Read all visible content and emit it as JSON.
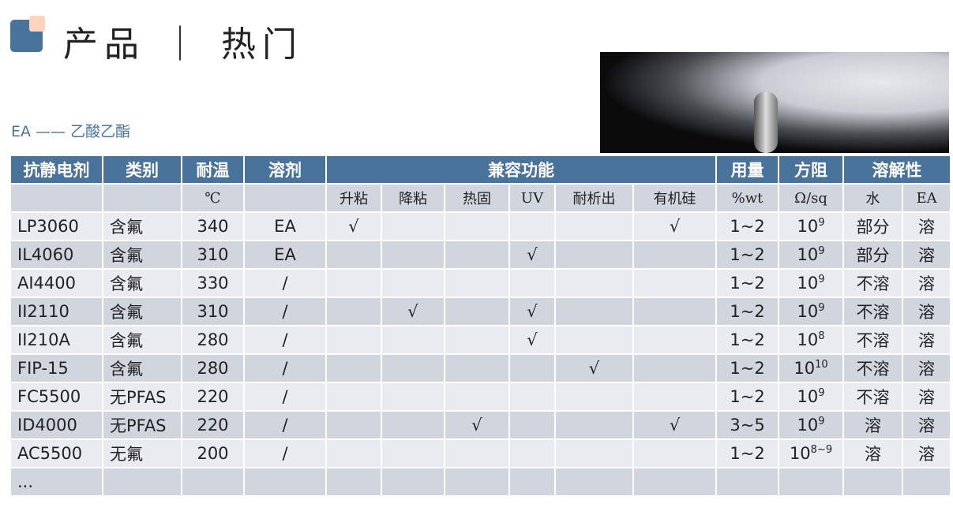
{
  "header": {
    "title": "产品 ｜ 热门",
    "subtitle": "EA —— 乙酸乙酯"
  },
  "colors": {
    "accent": "#4a739c",
    "accent2": "#fcd3bd",
    "row_light": "#e9ebf0",
    "row_dark": "#d0d5de"
  },
  "table": {
    "headers": [
      "抗静电剂",
      "类别",
      "耐温",
      "溶剂",
      "兼容功能",
      "用量",
      "方阻",
      "溶解性"
    ],
    "subheaders": [
      "",
      "",
      "℃",
      "",
      "升粘",
      "降粘",
      "热固",
      "UV",
      "耐析出",
      "有机硅",
      "%wt",
      "Ω/sq",
      "水",
      "EA"
    ],
    "rows": [
      {
        "name": "LP3060",
        "type": "含氟",
        "temp": "340",
        "solvent": "EA",
        "c": [
          "√",
          "",
          "",
          "",
          "",
          "√"
        ],
        "dose": "1~2",
        "r_base": "10",
        "r_exp": "9",
        "water": "部分",
        "ea": "溶"
      },
      {
        "name": "IL4060",
        "type": "含氟",
        "temp": "310",
        "solvent": "EA",
        "c": [
          "",
          "",
          "",
          "√",
          "",
          ""
        ],
        "dose": "1~2",
        "r_base": "10",
        "r_exp": "9",
        "water": "部分",
        "ea": "溶"
      },
      {
        "name": "AI4400",
        "type": "含氟",
        "temp": "330",
        "solvent": "/",
        "c": [
          "",
          "",
          "",
          "",
          "",
          ""
        ],
        "dose": "1~2",
        "r_base": "10",
        "r_exp": "9",
        "water": "不溶",
        "ea": "溶"
      },
      {
        "name": "II2110",
        "type": "含氟",
        "temp": "310",
        "solvent": "/",
        "c": [
          "",
          "√",
          "",
          "√",
          "",
          ""
        ],
        "dose": "1~2",
        "r_base": "10",
        "r_exp": "9",
        "water": "不溶",
        "ea": "溶"
      },
      {
        "name": "II210A",
        "type": "含氟",
        "temp": "280",
        "solvent": "/",
        "c": [
          "",
          "",
          "",
          "√",
          "",
          ""
        ],
        "dose": "1~2",
        "r_base": "10",
        "r_exp": "8",
        "water": "不溶",
        "ea": "溶"
      },
      {
        "name": "FIP-15",
        "type": "含氟",
        "temp": "280",
        "solvent": "/",
        "c": [
          "",
          "",
          "",
          "",
          "√",
          ""
        ],
        "dose": "1~2",
        "r_base": "10",
        "r_exp": "10",
        "water": "不溶",
        "ea": "溶"
      },
      {
        "name": "FC5500",
        "type": "无PFAS",
        "temp": "220",
        "solvent": "/",
        "c": [
          "",
          "",
          "",
          "",
          "",
          ""
        ],
        "dose": "1~2",
        "r_base": "10",
        "r_exp": "9",
        "water": "不溶",
        "ea": "溶"
      },
      {
        "name": "ID4000",
        "type": "无PFAS",
        "temp": "220",
        "solvent": "/",
        "c": [
          "",
          "",
          "√",
          "",
          "",
          "√"
        ],
        "dose": "3~5",
        "r_base": "10",
        "r_exp": "9",
        "water": "溶",
        "ea": "溶"
      },
      {
        "name": "AC5500",
        "type": "无氟",
        "temp": "200",
        "solvent": "/",
        "c": [
          "",
          "",
          "",
          "",
          "",
          ""
        ],
        "dose": "1~2",
        "r_base": "10",
        "r_exp": "8~9",
        "water": "溶",
        "ea": "溶"
      }
    ],
    "more": "..."
  }
}
